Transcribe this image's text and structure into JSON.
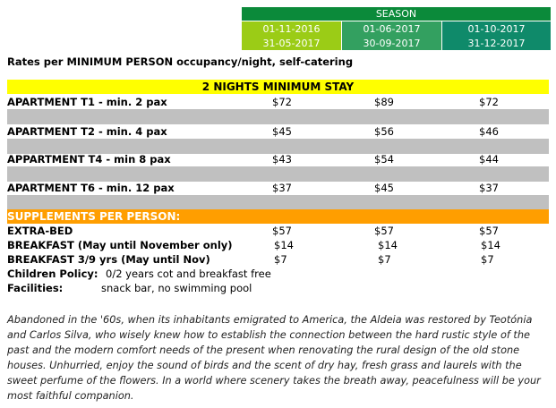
{
  "season": {
    "header": "SEASON",
    "columns": [
      {
        "start": "01-11-2016",
        "end": "31-05-2017"
      },
      {
        "start": "01-06-2017",
        "end": "30-09-2017"
      },
      {
        "start": "01-10-2017",
        "end": "31-12-2017"
      }
    ]
  },
  "subtitle": "Rates per MINIMUM PERSON occupancy/night, self-catering",
  "min_stay": "2 NIGHTS MINIMUM STAY",
  "apartments": [
    {
      "label": "APARTMENT T1 - min. 2 pax",
      "prices": [
        "$72",
        "$89",
        "$72"
      ]
    },
    {
      "label": "APARTMENT T2 - min. 4 pax",
      "prices": [
        "$45",
        "$56",
        "$46"
      ]
    },
    {
      "label": "APPARTMENT T4 - min 8 pax",
      "prices": [
        "$43",
        "$54",
        "$44"
      ]
    },
    {
      "label": "APARTMENT T6 - min. 12 pax",
      "prices": [
        "$37",
        "$45",
        "$37"
      ]
    }
  ],
  "supplements": {
    "header": "SUPPLEMENTS PER PERSON:",
    "items": [
      {
        "label": "EXTRA-BED",
        "prices": [
          "$57",
          "$57",
          "$57"
        ]
      },
      {
        "label": "BREAKFAST (May until November only)",
        "prices": [
          "$14",
          "$14",
          "$14"
        ]
      },
      {
        "label": "BREAKFAST 3/9 yrs (May until Nov)",
        "prices": [
          "$7",
          "$7",
          "$7"
        ]
      }
    ]
  },
  "children_policy": {
    "label": "Children Policy:",
    "value": "0/2 years cot and breakfast free"
  },
  "facilities": {
    "label": "Facilities:",
    "value": "snack bar, no swimming pool"
  },
  "description": "Abandoned in the '60s, when its inhabitants emigrated to America, the Aldeia was restored by Teotónia and Carlos Silva, who wisely knew how to establish the connection between the hard rustic style of the past and the modern comfort needs of the present when renovating the rural design of the old stone houses. Unhurried, enjoy the sound of birds and the scent of dry hay, fresh grass and laurels with the sweet perfume of the flowers. In a world where scenery takes the breath away, peacefulness will be your most faithful companion.",
  "colors": {
    "season_header": "#0b8a3a",
    "season_col1": "#9bcc16",
    "season_col2": "#33a060",
    "season_col3": "#0f8a6a",
    "min_stay_bg": "#ffff00",
    "separator_grey": "#c0c0c0",
    "supplements_bg": "#ff9e00"
  }
}
